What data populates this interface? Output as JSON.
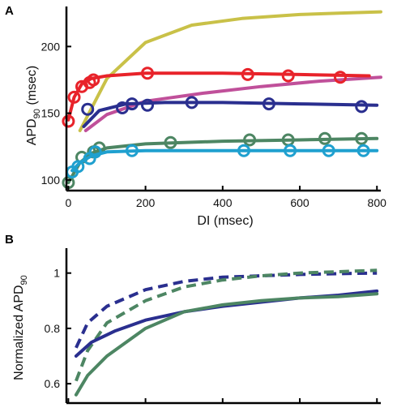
{
  "chart_data": [
    {
      "panel": "A",
      "type": "line",
      "xlabel": "DI (msec)",
      "ylabel_main": "APD",
      "ylabel_sub": "90",
      "ylabel_unit": " (msec)",
      "xlim": [
        -5,
        810
      ],
      "ylim": [
        92,
        230
      ],
      "xticks": [
        0,
        200,
        400,
        600,
        800
      ],
      "yticks": [
        100,
        150,
        200
      ],
      "series": [
        {
          "color": "#c9c148",
          "style": "solid",
          "markers": false,
          "x": [
            30,
            100,
            200,
            320,
            450,
            600,
            700,
            810
          ],
          "y": [
            137,
            176,
            203,
            216,
            221,
            224,
            225,
            226
          ]
        },
        {
          "color": "#c0509a",
          "style": "solid",
          "markers": false,
          "x": [
            45,
            100,
            200,
            350,
            500,
            650,
            810
          ],
          "y": [
            137,
            149,
            159,
            165,
            170,
            174,
            177
          ]
        },
        {
          "color": "#e8232a",
          "style": "solid",
          "markers": true,
          "x": [
            0,
            15,
            35,
            55,
            65,
            205,
            465,
            570,
            705
          ],
          "y": [
            144,
            162,
            170,
            173,
            175,
            180,
            179,
            178,
            177
          ],
          "line_x": [
            0,
            15,
            35,
            60,
            100,
            200,
            400,
            600,
            780
          ],
          "line_y": [
            145,
            162,
            172,
            176,
            178,
            180,
            180,
            179,
            178
          ]
        },
        {
          "color": "#2a2f8f",
          "style": "solid",
          "markers": true,
          "x": [
            50,
            140,
            165,
            205,
            320,
            520,
            760
          ],
          "y": [
            153,
            154,
            157,
            156,
            158,
            157,
            155
          ],
          "line_x": [
            40,
            80,
            150,
            250,
            400,
            600,
            800
          ],
          "line_y": [
            140,
            152,
            157,
            158,
            158,
            157,
            156
          ]
        },
        {
          "color": "#4d8663",
          "style": "solid",
          "markers": true,
          "x": [
            0,
            35,
            65,
            80,
            265,
            470,
            570,
            665,
            760
          ],
          "y": [
            98,
            117,
            121,
            124,
            128,
            130,
            130,
            131,
            131
          ],
          "line_x": [
            0,
            30,
            60,
            100,
            200,
            400,
            600,
            800
          ],
          "line_y": [
            98,
            113,
            120,
            124,
            127,
            129,
            130,
            131
          ]
        },
        {
          "color": "#1fa0cf",
          "style": "solid",
          "markers": true,
          "x": [
            10,
            25,
            55,
            70,
            165,
            455,
            575,
            675,
            765
          ],
          "y": [
            106,
            110,
            116,
            121,
            122,
            122,
            122,
            122,
            122
          ],
          "line_x": [
            10,
            30,
            60,
            100,
            200,
            400,
            600,
            800
          ],
          "line_y": [
            107,
            113,
            118,
            121,
            122,
            122,
            122,
            122
          ]
        }
      ]
    },
    {
      "panel": "B",
      "type": "line",
      "ylabel_main": "Normalized APD",
      "ylabel_sub": "90",
      "xlim": [
        -5,
        810
      ],
      "ylim": [
        0.53,
        1.09
      ],
      "xticks": [
        0,
        200,
        400,
        600,
        800
      ],
      "yticks": [
        0.6,
        0.8,
        1
      ],
      "ytick_labels": [
        "0.6",
        "0.8",
        "1"
      ],
      "series": [
        {
          "color": "#2a2f8f",
          "style": "dashed",
          "x": [
            20,
            50,
            100,
            200,
            300,
            400,
            500,
            600,
            700,
            800
          ],
          "y": [
            0.73,
            0.82,
            0.88,
            0.94,
            0.97,
            0.985,
            0.99,
            0.995,
            0.998,
            1.0
          ]
        },
        {
          "color": "#4d8663",
          "style": "dashed",
          "x": [
            20,
            50,
            100,
            200,
            300,
            400,
            500,
            600,
            700,
            800
          ],
          "y": [
            0.61,
            0.72,
            0.82,
            0.9,
            0.95,
            0.975,
            0.99,
            1.0,
            1.005,
            1.01
          ]
        },
        {
          "color": "#2a2f8f",
          "style": "solid",
          "x": [
            20,
            60,
            120,
            200,
            300,
            400,
            500,
            600,
            700,
            800
          ],
          "y": [
            0.7,
            0.75,
            0.79,
            0.83,
            0.86,
            0.88,
            0.895,
            0.91,
            0.92,
            0.935
          ]
        },
        {
          "color": "#4d8663",
          "style": "solid",
          "x": [
            20,
            50,
            100,
            200,
            300,
            400,
            500,
            600,
            700,
            800
          ],
          "y": [
            0.56,
            0.63,
            0.7,
            0.8,
            0.86,
            0.885,
            0.9,
            0.91,
            0.915,
            0.925
          ]
        }
      ]
    }
  ]
}
